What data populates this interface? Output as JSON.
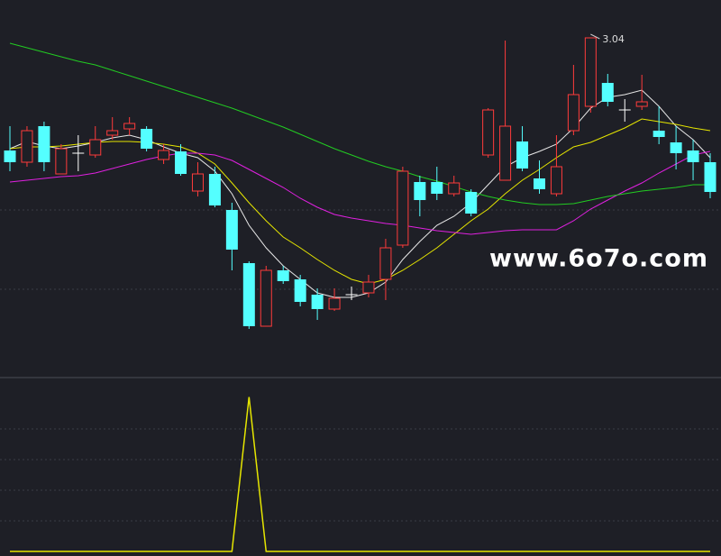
{
  "chart_data": [
    {
      "type": "candlestick",
      "up_color": "#ff3b3b",
      "down_color": "#54ffff",
      "flat_color": "#ffffff",
      "ylim": [
        1.16,
        3.25
      ],
      "open": [
        2.415,
        2.35,
        2.55,
        2.285,
        2.4,
        2.39,
        2.5,
        2.535,
        2.535,
        2.365,
        2.41,
        2.19,
        2.285,
        2.085,
        1.79,
        1.44,
        1.75,
        1.7,
        1.615,
        1.535,
        1.615,
        1.625,
        1.7,
        1.89,
        2.24,
        2.24,
        2.175,
        2.185,
        2.39,
        2.25,
        2.465,
        2.26,
        2.175,
        2.525,
        2.66,
        2.79,
        2.64,
        2.66,
        2.525,
        2.46,
        2.415,
        2.35
      ],
      "close": [
        2.35,
        2.525,
        2.35,
        2.425,
        2.4,
        2.475,
        2.525,
        2.565,
        2.425,
        2.415,
        2.285,
        2.285,
        2.11,
        1.865,
        1.44,
        1.75,
        1.69,
        1.575,
        1.535,
        1.595,
        1.615,
        1.685,
        1.875,
        2.3,
        2.14,
        2.175,
        2.235,
        2.065,
        2.64,
        2.55,
        2.315,
        2.2,
        2.325,
        2.725,
        3.04,
        2.685,
        2.64,
        2.685,
        2.49,
        2.4,
        2.35,
        2.185
      ],
      "high": [
        2.55,
        2.55,
        2.575,
        2.45,
        2.5,
        2.55,
        2.6,
        2.6,
        2.55,
        2.45,
        2.45,
        2.35,
        2.325,
        2.125,
        1.8,
        1.775,
        1.775,
        1.725,
        1.65,
        1.65,
        1.66,
        1.725,
        1.925,
        2.325,
        2.275,
        2.325,
        2.275,
        2.2,
        2.65,
        3.025,
        2.55,
        2.36,
        2.5,
        2.89,
        3.04,
        2.84,
        2.7,
        2.835,
        2.66,
        2.55,
        2.475,
        2.4
      ],
      "low": [
        2.3,
        2.325,
        2.3,
        2.285,
        2.3,
        2.375,
        2.475,
        2.5,
        2.41,
        2.34,
        2.275,
        2.16,
        2.1,
        1.75,
        1.425,
        1.44,
        1.675,
        1.55,
        1.475,
        1.525,
        1.585,
        1.6,
        1.585,
        1.875,
        2.05,
        2.14,
        2.16,
        2.05,
        2.375,
        2.25,
        2.3,
        2.175,
        2.16,
        2.5,
        2.625,
        2.66,
        2.575,
        2.64,
        2.45,
        2.31,
        2.25,
        2.15
      ],
      "series": [
        {
          "color": "#e8e8e8",
          "values": [
            2.425,
            2.465,
            2.44,
            2.425,
            2.44,
            2.46,
            2.485,
            2.5,
            2.475,
            2.435,
            2.4,
            2.375,
            2.3,
            2.175,
            2.0,
            1.875,
            1.775,
            1.7,
            1.625,
            1.6,
            1.6,
            1.625,
            1.685,
            1.81,
            1.91,
            2.0,
            2.05,
            2.125,
            2.225,
            2.325,
            2.375,
            2.41,
            2.45,
            2.54,
            2.65,
            2.71,
            2.725,
            2.75,
            2.66,
            2.55,
            2.475,
            2.375
          ]
        },
        {
          "color": "#e6e600",
          "values": [
            2.425,
            2.435,
            2.435,
            2.44,
            2.45,
            2.46,
            2.465,
            2.465,
            2.46,
            2.45,
            2.435,
            2.4,
            2.34,
            2.235,
            2.125,
            2.025,
            1.935,
            1.875,
            1.81,
            1.75,
            1.7,
            1.675,
            1.7,
            1.75,
            1.81,
            1.875,
            1.95,
            2.025,
            2.09,
            2.175,
            2.25,
            2.31,
            2.375,
            2.435,
            2.46,
            2.5,
            2.54,
            2.59,
            2.575,
            2.56,
            2.54,
            2.525
          ]
        },
        {
          "color": "#e020e0",
          "values": [
            2.24,
            2.25,
            2.26,
            2.27,
            2.275,
            2.29,
            2.315,
            2.34,
            2.365,
            2.385,
            2.4,
            2.4,
            2.39,
            2.36,
            2.31,
            2.26,
            2.21,
            2.15,
            2.1,
            2.06,
            2.04,
            2.025,
            2.01,
            2.0,
            1.985,
            1.97,
            1.96,
            1.95,
            1.96,
            1.97,
            1.975,
            1.975,
            1.975,
            2.025,
            2.09,
            2.14,
            2.19,
            2.235,
            2.29,
            2.34,
            2.39,
            2.41
          ]
        },
        {
          "color": "#22cc22",
          "values": [
            3.01,
            2.985,
            2.96,
            2.935,
            2.91,
            2.89,
            2.86,
            2.83,
            2.8,
            2.77,
            2.74,
            2.71,
            2.68,
            2.65,
            2.615,
            2.58,
            2.545,
            2.505,
            2.465,
            2.425,
            2.39,
            2.355,
            2.325,
            2.3,
            2.27,
            2.245,
            2.215,
            2.185,
            2.16,
            2.14,
            2.125,
            2.115,
            2.115,
            2.12,
            2.14,
            2.16,
            2.175,
            2.19,
            2.2,
            2.21,
            2.225,
            2.225
          ]
        }
      ],
      "annotations": [
        {
          "text": "3.04",
          "value": 3.04
        }
      ],
      "watermark": "www.6o7o.com"
    },
    {
      "type": "line",
      "color": "#e6e600",
      "ylim": [
        -0.03,
        1.12
      ],
      "values": [
        0,
        0,
        0,
        0,
        0,
        0,
        0,
        0,
        0,
        0,
        0,
        0,
        0,
        0,
        1,
        0,
        0,
        0,
        0,
        0,
        0,
        0,
        0,
        0,
        0,
        0,
        0,
        0,
        0,
        0,
        0,
        0,
        0,
        0,
        0,
        0,
        0,
        0,
        0,
        0,
        0,
        0
      ]
    }
  ]
}
